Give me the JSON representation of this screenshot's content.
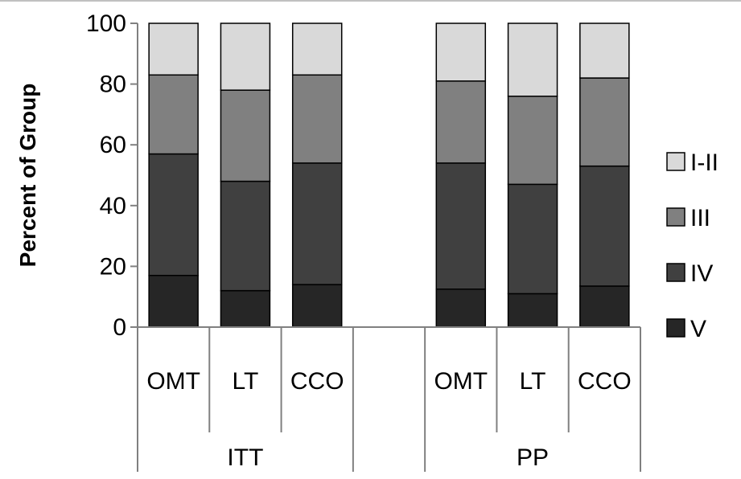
{
  "chart_data": {
    "type": "bar",
    "stacked": true,
    "ylabel": "Percent of Group",
    "ylim": [
      0,
      100
    ],
    "yticks": [
      0,
      20,
      40,
      60,
      80,
      100
    ],
    "grid": false,
    "legend_position": "right",
    "groups": [
      {
        "label": "ITT",
        "categories": [
          "OMT",
          "LT",
          "CCO"
        ]
      },
      {
        "label": "",
        "categories": [
          ""
        ]
      },
      {
        "label": "PP",
        "categories": [
          "OMT",
          "LT",
          "CCO"
        ]
      }
    ],
    "series": [
      {
        "name": "V",
        "color": "#262626",
        "values": [
          17,
          12,
          14,
          null,
          12.5,
          11,
          13.5
        ]
      },
      {
        "name": "IV",
        "color": "#404040",
        "values": [
          40,
          36,
          40,
          null,
          41.5,
          36,
          39.5
        ]
      },
      {
        "name": "III",
        "color": "#808080",
        "values": [
          26,
          30,
          29,
          null,
          27,
          29,
          29
        ]
      },
      {
        "name": "I-II",
        "color": "#d9d9d9",
        "values": [
          17,
          22,
          17,
          null,
          19,
          24,
          18
        ]
      }
    ]
  }
}
